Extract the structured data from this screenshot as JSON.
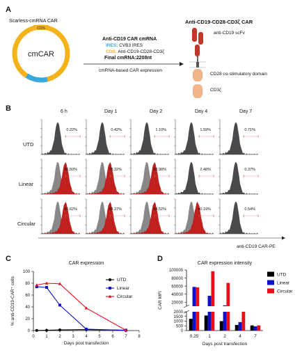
{
  "panelA": {
    "letter": "A",
    "plasmid_title": "Scarless-cmRNA CAR",
    "cds_tag": "CDS",
    "plasmid_label": "cmCAR",
    "construct_title": "Anti-CD19 CAR cmRNA",
    "ires_key": "IRES:",
    "ires_value": " CVB3 IRES",
    "cds_key": "CDS:",
    "cds_value": " Anti-CD19-CD28-CD3ζ",
    "final_length": "Final cmRNA:2208nt",
    "arrow_label": "cmRNA-based CAR expression",
    "car_title": "Anti-CD19-CD28-CD3ζ CAR",
    "scfv_label": "anti-CD19 scFv",
    "cd28_label": "CD28 co-stimulatory domain",
    "cd3z_label": "CD3ζ",
    "colors": {
      "ring": "#f5b31b",
      "ires": "#35a9e0",
      "cds": "#f5b31b",
      "scfv": "#c0392b",
      "domain": "#f2b48a"
    }
  },
  "panelB": {
    "letter": "B",
    "time_points": [
      "6 h",
      "Day 1",
      "Day 2",
      "Day 4",
      "Day 7"
    ],
    "groups": [
      "UTD",
      "Linear",
      "Circular"
    ],
    "percentages": [
      [
        "0.22%",
        "0.42%",
        "1.10%",
        "1.59%",
        "0.71%"
      ],
      [
        "56.50%",
        "78.32%",
        "83.98%",
        "2.48%",
        "0.37%"
      ],
      [
        "65.62%",
        "88.37%",
        "84.52%",
        "40.19%",
        "0.54%"
      ]
    ],
    "red_fill": [
      [
        false,
        false,
        false,
        false,
        false
      ],
      [
        true,
        true,
        true,
        false,
        false
      ],
      [
        true,
        true,
        true,
        true,
        false
      ]
    ],
    "x_axis_label": "anti-CD19 CAR-PE",
    "colors": {
      "negative": "#444444",
      "positive": "#c0211f",
      "gate": "#e05a5a"
    }
  },
  "chart_data": [
    {
      "type": "line",
      "panel": "C",
      "title": "CAR expression",
      "xlabel": "Days post transfection",
      "ylabel": "% anti-CD19-CAR⁺ cells",
      "xlim": [
        0,
        8
      ],
      "ylim": [
        0,
        100
      ],
      "xticks": [
        0,
        1,
        2,
        3,
        4,
        5,
        6,
        7,
        8
      ],
      "yticks": [
        0,
        20,
        40,
        60,
        80,
        100
      ],
      "x": [
        0.25,
        1,
        2,
        4,
        7
      ],
      "series": [
        {
          "name": "UTD",
          "values": [
            0.22,
            0.42,
            1.1,
            1.59,
            0.71
          ],
          "color": "#000000",
          "marker": "circle"
        },
        {
          "name": "Linear",
          "values": [
            74,
            73,
            43,
            2.5,
            0.4
          ],
          "color": "#1010cc",
          "marker": "square"
        },
        {
          "name": "Circular",
          "values": [
            77,
            80,
            79,
            38,
            0.5
          ],
          "color": "#e8111a",
          "marker": "triangle"
        }
      ],
      "legend": "right"
    },
    {
      "type": "bar",
      "panel": "D",
      "title": "CAR expression intensity",
      "xlabel": "Days post transfection",
      "ylabel": "CAR MFI",
      "categories": [
        "0.25",
        "1",
        "2",
        "4",
        "7"
      ],
      "yticks_upper": [
        20000,
        40000,
        60000,
        80000,
        100000
      ],
      "yticks_lower": [
        0,
        500,
        1000,
        1500,
        2000
      ],
      "series": [
        {
          "name": "UTD",
          "values": [
            1250,
            1600,
            1000,
            600,
            550
          ],
          "color": "#000000"
        },
        {
          "name": "Linear",
          "values": [
            58000,
            36000,
            12000,
            900,
            450
          ],
          "color": "#1010cc"
        },
        {
          "name": "Circular",
          "values": [
            57000,
            97000,
            68000,
            3100,
            550
          ],
          "color": "#e8111a"
        }
      ],
      "legend": "top-right"
    }
  ]
}
